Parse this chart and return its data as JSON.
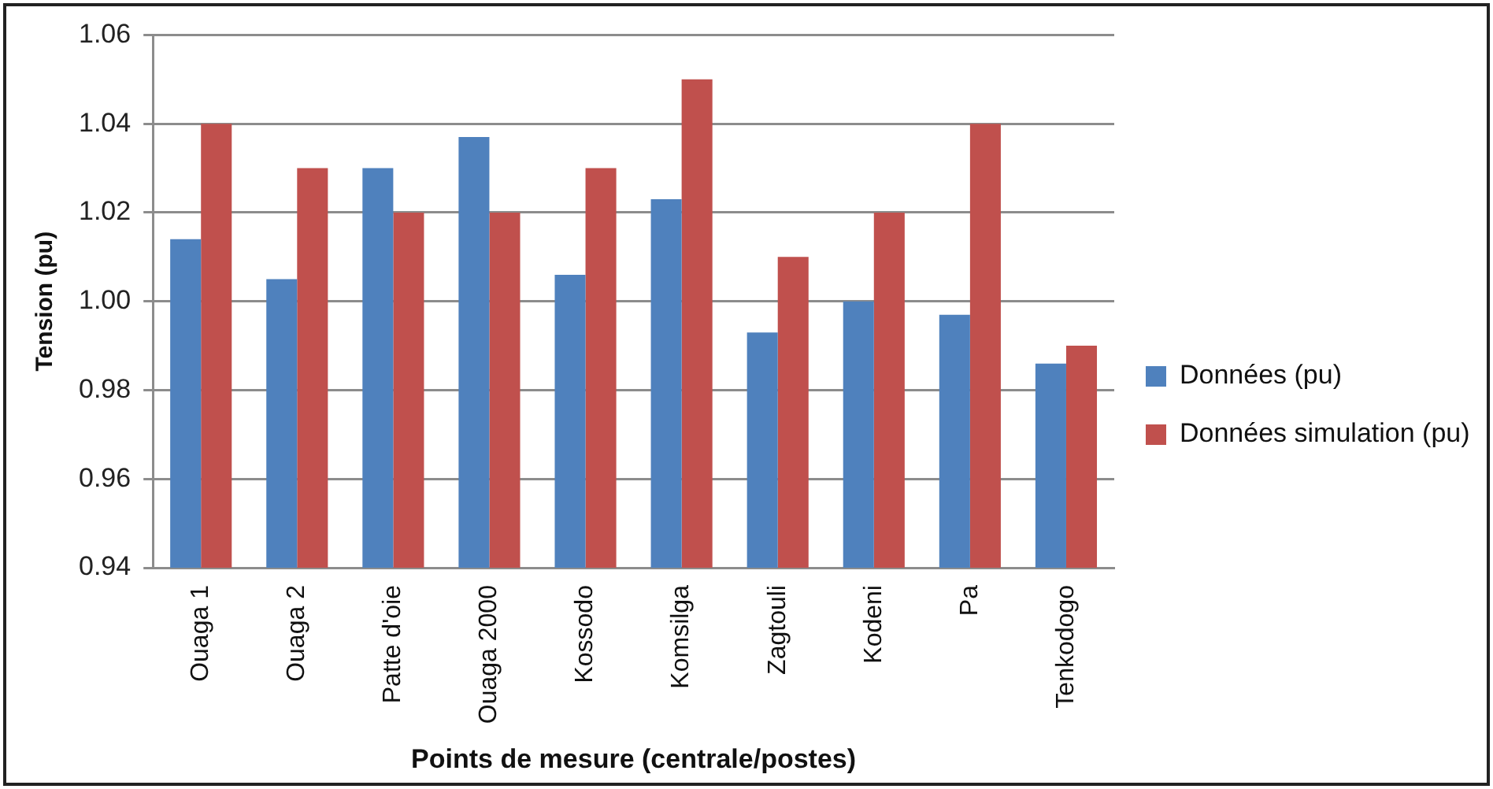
{
  "chart_data": {
    "type": "bar",
    "xlabel": "Points de mesure (centrale/postes)",
    "ylabel": "Tension (pu)",
    "categories": [
      "Ouaga 1",
      "Ouaga 2",
      "Patte d'oie",
      "Ouaga 2000",
      "Kossodo",
      "Komsilga",
      "Zagtouli",
      "Kodeni",
      "Pa",
      "Tenkodogo"
    ],
    "series": [
      {
        "name": "Données (pu)",
        "color": "#4f81bd",
        "values": [
          1.014,
          1.005,
          1.03,
          1.037,
          1.006,
          1.023,
          0.993,
          1.0,
          0.997,
          0.986
        ]
      },
      {
        "name": "Données simulation (pu)",
        "color": "#c0504d",
        "values": [
          1.04,
          1.03,
          1.02,
          1.02,
          1.03,
          1.05,
          1.01,
          1.02,
          1.04,
          0.99
        ]
      }
    ],
    "ylim": [
      0.94,
      1.06
    ],
    "yticks": [
      {
        "value": 0.94,
        "label": "0.94"
      },
      {
        "value": 0.96,
        "label": "0.96"
      },
      {
        "value": 0.98,
        "label": "0.98"
      },
      {
        "value": 1.0,
        "label": "1.00"
      },
      {
        "value": 1.02,
        "label": "1.02"
      },
      {
        "value": 1.04,
        "label": "1.04"
      },
      {
        "value": 1.06,
        "label": "1.06"
      }
    ],
    "grid": "y",
    "legend": "right"
  }
}
